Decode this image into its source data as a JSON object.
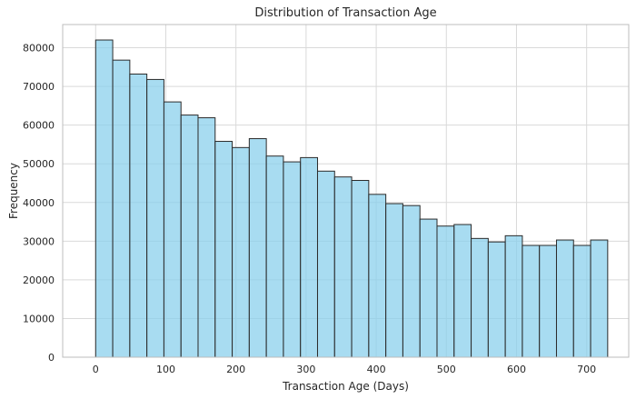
{
  "chart_data": {
    "type": "bar",
    "title": "Distribution of Transaction Age",
    "xlabel": "Transaction Age (Days)",
    "ylabel": "Frequency",
    "bin_edges": [
      0,
      24.33,
      48.67,
      73,
      97.33,
      121.67,
      146,
      170.33,
      194.67,
      219,
      243.33,
      267.67,
      292,
      316.33,
      340.67,
      365,
      389.33,
      413.67,
      438,
      462.33,
      486.67,
      511,
      535.33,
      559.67,
      584,
      608.33,
      632.67,
      657,
      681.33,
      705.67,
      730
    ],
    "values": [
      82000,
      76800,
      73200,
      71800,
      66000,
      62600,
      61900,
      55800,
      54200,
      56500,
      52000,
      50500,
      51600,
      48100,
      46600,
      45700,
      42100,
      39700,
      39200,
      35700,
      33900,
      34300,
      30700,
      29800,
      31400,
      28900,
      28900,
      30300,
      28900,
      30300
    ],
    "xlim": [
      -47,
      760
    ],
    "ylim": [
      0,
      86000
    ],
    "x_ticks": [
      0,
      100,
      200,
      300,
      400,
      500,
      600,
      700
    ],
    "y_ticks": [
      0,
      10000,
      20000,
      30000,
      40000,
      50000,
      60000,
      70000,
      80000
    ],
    "grid": true,
    "colors": {
      "bar_fill": "#87CEEB",
      "bar_edge": "#2b2b2b",
      "grid": "#d9d9d9"
    }
  }
}
